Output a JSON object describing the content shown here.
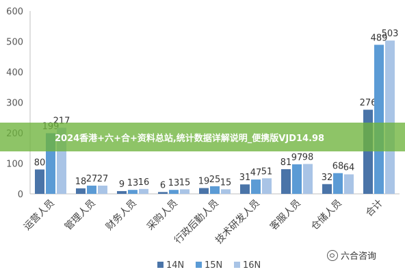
{
  "chart_data": {
    "type": "bar",
    "categories": [
      "运营人员",
      "管理人员",
      "财务人员",
      "采购人员",
      "行政后勤人员",
      "技术研发人员",
      "客服人员",
      "仓储人员",
      "合计"
    ],
    "series": [
      {
        "name": "14N",
        "values": [
          80,
          18,
          9,
          6,
          19,
          31,
          81,
          32,
          276
        ],
        "color": "#4a74a8"
      },
      {
        "name": "15N",
        "values": [
          199,
          27,
          13,
          13,
          25,
          47,
          97,
          68,
          489
        ],
        "color": "#5b9bd5"
      },
      {
        "name": "16N",
        "values": [
          217,
          27,
          16,
          15,
          15,
          51,
          98,
          64,
          503
        ],
        "color": "#a9c4e6"
      }
    ],
    "ylim": [
      0,
      600
    ],
    "yticks": [
      0,
      100,
      200,
      300,
      400,
      500,
      600
    ],
    "grid": false,
    "legend_position": "bottom",
    "xlabel": "",
    "ylabel": ""
  },
  "banner": {
    "text": "2024香港+六+合+资料总站,统计数据详解说明_便携版VJD14.98"
  },
  "watermark": {
    "text": "六合咨询",
    "icon": "wechat-icon"
  }
}
